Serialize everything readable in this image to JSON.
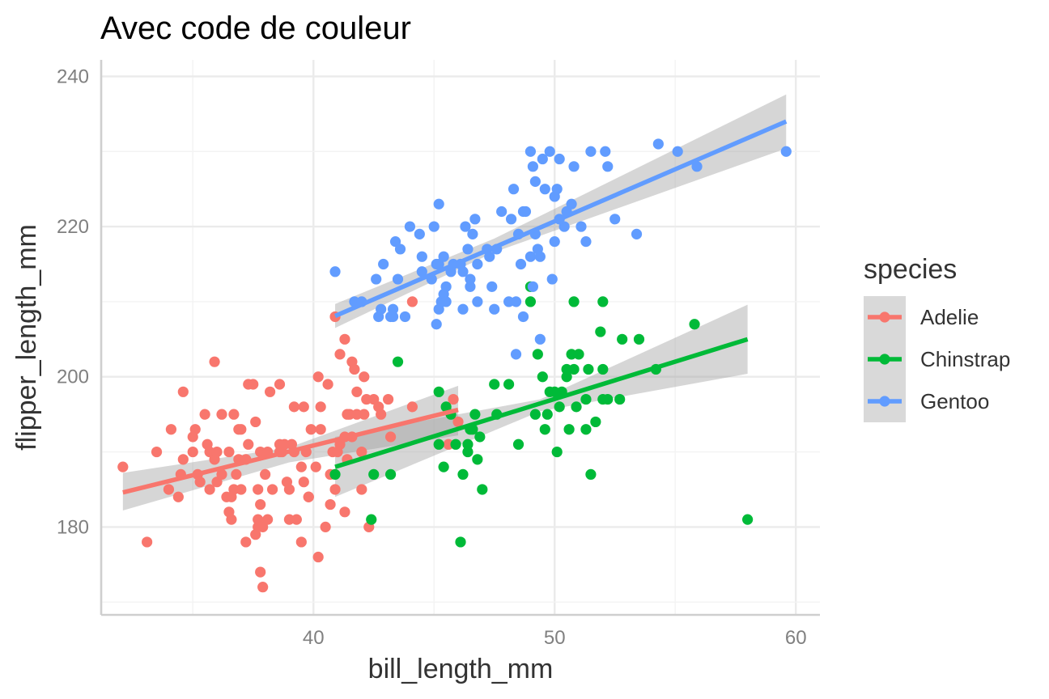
{
  "chart_data": {
    "type": "scatter",
    "title": "Avec code de couleur",
    "xlabel": "bill_length_mm",
    "ylabel": "flipper_length_mm",
    "xlim": [
      31.2,
      61
    ],
    "ylim": [
      168.3,
      242.2
    ],
    "x_ticks": [
      40,
      50,
      60
    ],
    "y_ticks": [
      180,
      200,
      220,
      240
    ],
    "x_tick_labels": [
      "40",
      "50",
      "60"
    ],
    "y_tick_labels": [
      "180",
      "200",
      "220",
      "240"
    ],
    "grid": true,
    "legend": {
      "title": "species",
      "position": "right",
      "entries": [
        "Adelie",
        "Chinstrap",
        "Gentoo"
      ]
    },
    "series": [
      {
        "name": "Adelie",
        "color": "#F8766D",
        "fit": {
          "x": [
            32.1,
            46.0
          ],
          "y": [
            184.6,
            195.6
          ]
        },
        "band": {
          "x": [
            32.1,
            39.0,
            46.0
          ],
          "lower": [
            182.2,
            188.6,
            192.2
          ],
          "upper": [
            187.2,
            190.6,
            198.8
          ]
        },
        "points": [
          [
            32.1,
            188
          ],
          [
            33.1,
            178
          ],
          [
            33.5,
            190
          ],
          [
            34.0,
            185
          ],
          [
            34.1,
            193
          ],
          [
            34.4,
            184
          ],
          [
            34.5,
            187
          ],
          [
            34.6,
            198
          ],
          [
            34.6,
            189
          ],
          [
            35.0,
            190
          ],
          [
            35.1,
            193
          ],
          [
            35.0,
            192
          ],
          [
            35.2,
            187
          ],
          [
            35.3,
            186
          ],
          [
            35.5,
            195
          ],
          [
            35.6,
            191
          ],
          [
            35.7,
            190
          ],
          [
            35.7,
            185
          ],
          [
            35.9,
            202
          ],
          [
            35.9,
            189
          ],
          [
            36.0,
            190
          ],
          [
            36.0,
            186
          ],
          [
            36.2,
            195
          ],
          [
            36.2,
            187
          ],
          [
            36.4,
            184
          ],
          [
            36.5,
            190
          ],
          [
            36.5,
            182
          ],
          [
            36.6,
            181
          ],
          [
            36.6,
            184
          ],
          [
            36.7,
            195
          ],
          [
            36.7,
            185
          ],
          [
            36.8,
            187
          ],
          [
            36.9,
            189
          ],
          [
            36.9,
            193
          ],
          [
            37.0,
            193
          ],
          [
            37.0,
            185
          ],
          [
            37.2,
            178
          ],
          [
            37.2,
            189
          ],
          [
            37.3,
            191
          ],
          [
            37.3,
            199
          ],
          [
            37.5,
            199
          ],
          [
            37.6,
            179
          ],
          [
            37.6,
            194
          ],
          [
            37.7,
            180
          ],
          [
            37.7,
            185
          ],
          [
            37.7,
            181
          ],
          [
            37.8,
            174
          ],
          [
            37.8,
            183
          ],
          [
            37.9,
            172
          ],
          [
            37.9,
            180
          ],
          [
            37.8,
            190
          ],
          [
            38.0,
            187
          ],
          [
            38.1,
            181
          ],
          [
            38.1,
            190
          ],
          [
            38.2,
            198
          ],
          [
            38.3,
            185
          ],
          [
            38.6,
            190
          ],
          [
            38.6,
            191
          ],
          [
            38.6,
            199
          ],
          [
            38.7,
            190
          ],
          [
            38.8,
            191
          ],
          [
            38.9,
            186
          ],
          [
            39.0,
            185
          ],
          [
            39.0,
            181
          ],
          [
            39.1,
            191
          ],
          [
            39.2,
            196
          ],
          [
            39.2,
            190
          ],
          [
            39.3,
            181
          ],
          [
            39.5,
            188
          ],
          [
            39.5,
            178
          ],
          [
            39.6,
            186
          ],
          [
            39.6,
            196
          ],
          [
            39.7,
            190
          ],
          [
            39.8,
            184
          ],
          [
            39.8,
            184
          ],
          [
            39.9,
            193
          ],
          [
            40.1,
            188
          ],
          [
            40.2,
            176
          ],
          [
            40.2,
            200
          ],
          [
            40.3,
            193
          ],
          [
            40.3,
            196
          ],
          [
            40.5,
            180
          ],
          [
            40.6,
            199
          ],
          [
            40.7,
            183
          ],
          [
            40.7,
            187
          ],
          [
            40.8,
            190
          ],
          [
            40.9,
            185
          ],
          [
            40.9,
            208
          ],
          [
            41.0,
            190
          ],
          [
            41.1,
            191
          ],
          [
            41.1,
            203
          ],
          [
            41.3,
            192
          ],
          [
            41.3,
            182
          ],
          [
            41.3,
            205
          ],
          [
            41.4,
            189
          ],
          [
            41.4,
            195
          ],
          [
            41.5,
            195
          ],
          [
            41.6,
            192
          ],
          [
            41.6,
            202
          ],
          [
            41.7,
            201
          ],
          [
            41.8,
            198
          ],
          [
            41.8,
            195
          ],
          [
            42.0,
            185
          ],
          [
            42.0,
            190
          ],
          [
            42.1,
            195
          ],
          [
            42.1,
            200
          ],
          [
            42.2,
            197
          ],
          [
            42.3,
            180
          ],
          [
            42.5,
            197
          ],
          [
            42.7,
            196
          ],
          [
            42.8,
            195
          ],
          [
            43.1,
            197
          ],
          [
            43.2,
            192
          ],
          [
            44.1,
            196
          ],
          [
            44.1,
            210
          ],
          [
            45.6,
            191
          ],
          [
            45.8,
            197
          ],
          [
            46.0,
            194
          ]
        ]
      },
      {
        "name": "Chinstrap",
        "color": "#00BA38",
        "fit": {
          "x": [
            40.9,
            58.0
          ],
          "y": [
            188.0,
            205.0
          ]
        },
        "band": {
          "x": [
            40.9,
            49.4,
            58.0
          ],
          "lower": [
            184.0,
            195.4,
            200.4
          ],
          "upper": [
            192.0,
            197.0,
            209.6
          ]
        },
        "points": [
          [
            40.9,
            187
          ],
          [
            42.4,
            181
          ],
          [
            42.5,
            187
          ],
          [
            43.2,
            187
          ],
          [
            43.5,
            202
          ],
          [
            45.2,
            198
          ],
          [
            45.2,
            191
          ],
          [
            45.4,
            188
          ],
          [
            45.5,
            196
          ],
          [
            45.7,
            195
          ],
          [
            45.9,
            191
          ],
          [
            46.1,
            178
          ],
          [
            46.2,
            187
          ],
          [
            46.4,
            191
          ],
          [
            46.4,
            190
          ],
          [
            46.5,
            193
          ],
          [
            46.6,
            193
          ],
          [
            46.7,
            195
          ],
          [
            46.8,
            189
          ],
          [
            46.9,
            192
          ],
          [
            47.0,
            185
          ],
          [
            47.5,
            199
          ],
          [
            47.6,
            195
          ],
          [
            48.1,
            199
          ],
          [
            48.5,
            191
          ],
          [
            49.0,
            210
          ],
          [
            49.0,
            212
          ],
          [
            49.2,
            195
          ],
          [
            49.3,
            203
          ],
          [
            49.5,
            200
          ],
          [
            49.6,
            193
          ],
          [
            49.7,
            195
          ],
          [
            49.8,
            198
          ],
          [
            50.0,
            198
          ],
          [
            50.1,
            190
          ],
          [
            50.2,
            196
          ],
          [
            50.3,
            198
          ],
          [
            50.5,
            200
          ],
          [
            50.5,
            201
          ],
          [
            50.6,
            193
          ],
          [
            50.7,
            203
          ],
          [
            50.8,
            210
          ],
          [
            50.8,
            201
          ],
          [
            50.9,
            196
          ],
          [
            51.0,
            203
          ],
          [
            51.3,
            193
          ],
          [
            51.3,
            197
          ],
          [
            51.4,
            201
          ],
          [
            51.5,
            187
          ],
          [
            51.7,
            194
          ],
          [
            51.9,
            206
          ],
          [
            52.0,
            201
          ],
          [
            52.0,
            210
          ],
          [
            52.0,
            197
          ],
          [
            52.2,
            197
          ],
          [
            52.7,
            197
          ],
          [
            52.8,
            205
          ],
          [
            53.5,
            205
          ],
          [
            54.2,
            201
          ],
          [
            55.8,
            207
          ],
          [
            58.0,
            181
          ]
        ]
      },
      {
        "name": "Gentoo",
        "color": "#619CFF",
        "fit": {
          "x": [
            40.9,
            59.6
          ],
          "y": [
            208.1,
            234.0
          ]
        },
        "band": {
          "x": [
            40.9,
            47.5,
            59.6
          ],
          "lower": [
            206.5,
            216.6,
            230.4
          ],
          "upper": [
            209.7,
            218.4,
            237.6
          ]
        },
        "points": [
          [
            40.9,
            214
          ],
          [
            41.7,
            210
          ],
          [
            42.0,
            210
          ],
          [
            42.6,
            213
          ],
          [
            42.7,
            208
          ],
          [
            42.8,
            209
          ],
          [
            42.9,
            215
          ],
          [
            43.2,
            208
          ],
          [
            43.3,
            208
          ],
          [
            43.3,
            209
          ],
          [
            43.4,
            218
          ],
          [
            43.5,
            213
          ],
          [
            43.6,
            217
          ],
          [
            43.8,
            208
          ],
          [
            44.0,
            220
          ],
          [
            44.4,
            219
          ],
          [
            44.5,
            216
          ],
          [
            44.5,
            214
          ],
          [
            44.9,
            213
          ],
          [
            45.0,
            220
          ],
          [
            45.1,
            215
          ],
          [
            45.1,
            207
          ],
          [
            45.2,
            223
          ],
          [
            45.2,
            215
          ],
          [
            45.2,
            209
          ],
          [
            45.3,
            210
          ],
          [
            45.4,
            211
          ],
          [
            45.4,
            216
          ],
          [
            45.5,
            212
          ],
          [
            45.5,
            210
          ],
          [
            45.7,
            214
          ],
          [
            45.8,
            215
          ],
          [
            46.1,
            215
          ],
          [
            46.2,
            214
          ],
          [
            46.2,
            209
          ],
          [
            46.3,
            220
          ],
          [
            46.4,
            217
          ],
          [
            46.5,
            212
          ],
          [
            46.5,
            213
          ],
          [
            46.6,
            219
          ],
          [
            46.7,
            221
          ],
          [
            46.8,
            215
          ],
          [
            46.8,
            210
          ],
          [
            47.2,
            217
          ],
          [
            47.3,
            216
          ],
          [
            47.4,
            212
          ],
          [
            47.5,
            209
          ],
          [
            47.6,
            217
          ],
          [
            47.8,
            222
          ],
          [
            48.1,
            210
          ],
          [
            48.2,
            221
          ],
          [
            48.4,
            210
          ],
          [
            48.5,
            219
          ],
          [
            48.6,
            215
          ],
          [
            48.7,
            208
          ],
          [
            48.7,
            222
          ],
          [
            48.8,
            222
          ],
          [
            49.0,
            216
          ],
          [
            49.1,
            212
          ],
          [
            49.1,
            228
          ],
          [
            49.2,
            219
          ],
          [
            49.3,
            217
          ],
          [
            49.4,
            216
          ],
          [
            49.5,
            229
          ],
          [
            49.6,
            225
          ],
          [
            49.8,
            230
          ],
          [
            49.9,
            213
          ],
          [
            50.0,
            224
          ],
          [
            50.0,
            218
          ],
          [
            50.1,
            225
          ],
          [
            50.2,
            229
          ],
          [
            50.4,
            220
          ],
          [
            50.5,
            222
          ],
          [
            50.7,
            223
          ],
          [
            50.8,
            228
          ],
          [
            51.1,
            220
          ],
          [
            51.3,
            218
          ],
          [
            51.5,
            230
          ],
          [
            52.1,
            230
          ],
          [
            52.2,
            228
          ],
          [
            52.5,
            221
          ],
          [
            53.4,
            219
          ],
          [
            54.3,
            231
          ],
          [
            55.1,
            230
          ],
          [
            55.9,
            228
          ],
          [
            59.6,
            230
          ],
          [
            48.4,
            203
          ],
          [
            49.4,
            205
          ],
          [
            49.2,
            226
          ],
          [
            50.2,
            221
          ],
          [
            49.0,
            230
          ],
          [
            48.3,
            225
          ]
        ]
      }
    ]
  }
}
